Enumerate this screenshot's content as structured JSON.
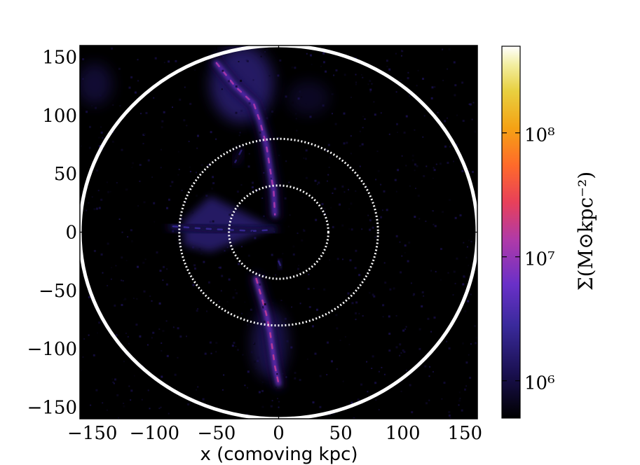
{
  "chart_data": {
    "type": "heatmap",
    "title": "",
    "xlabel": "x (comoving kpc)",
    "ylabel": "",
    "xlim": [
      -160,
      160
    ],
    "ylim": [
      -160,
      160
    ],
    "x_ticks": [
      -150,
      -100,
      -50,
      0,
      50,
      100,
      150
    ],
    "y_ticks": [
      150,
      100,
      50,
      0,
      -50,
      -100,
      -150
    ],
    "x_tick_labels": [
      "−150",
      "−100",
      "−50",
      "0",
      "50",
      "100",
      "150"
    ],
    "y_tick_labels": [
      "150",
      "100",
      "50",
      "0",
      "−50",
      "−100",
      "−150"
    ],
    "colorbar": {
      "label": "Σ(M⊙kpc⁻²)",
      "scale": "log",
      "range": [
        500000,
        500000000
      ],
      "ticks": [
        1000000,
        10000000,
        100000000
      ],
      "tick_labels": [
        "10⁶",
        "10⁷",
        "10⁸"
      ],
      "colormap": "CMRmap"
    },
    "circles": [
      {
        "radius": 160,
        "style": "solid",
        "color": "#ffffff"
      },
      {
        "radius": 80,
        "style": "dotted",
        "color": "#ffffff"
      },
      {
        "radius": 40,
        "style": "dotted",
        "color": "#ffffff"
      }
    ],
    "features": [
      {
        "name": "upper filament",
        "points": [
          [
            -50,
            145
          ],
          [
            -35,
            125
          ],
          [
            -20,
            110
          ],
          [
            -15,
            95
          ],
          [
            -10,
            75
          ],
          [
            -7,
            55
          ],
          [
            -4,
            35
          ],
          [
            -3,
            15
          ]
        ],
        "peak_log_density": 7.1
      },
      {
        "name": "lower filament",
        "points": [
          [
            -18,
            -40
          ],
          [
            -14,
            -55
          ],
          [
            -10,
            -70
          ],
          [
            -7,
            -85
          ],
          [
            -5,
            -100
          ],
          [
            -3,
            -115
          ],
          [
            0,
            -130
          ]
        ],
        "peak_log_density": 7.2
      },
      {
        "name": "left wedge",
        "points": [
          [
            -85,
            5
          ],
          [
            -60,
            3
          ],
          [
            -40,
            2
          ],
          [
            -20,
            1
          ],
          [
            -5,
            2
          ]
        ],
        "peak_log_density": 6.4
      },
      {
        "name": "central clump",
        "points": [
          [
            0,
            -25
          ],
          [
            2,
            -30
          ]
        ],
        "peak_log_density": 6.3
      },
      {
        "name": "side arm",
        "points": [
          [
            -30,
            70
          ],
          [
            -35,
            60
          ]
        ],
        "peak_log_density": 6.2
      }
    ]
  }
}
